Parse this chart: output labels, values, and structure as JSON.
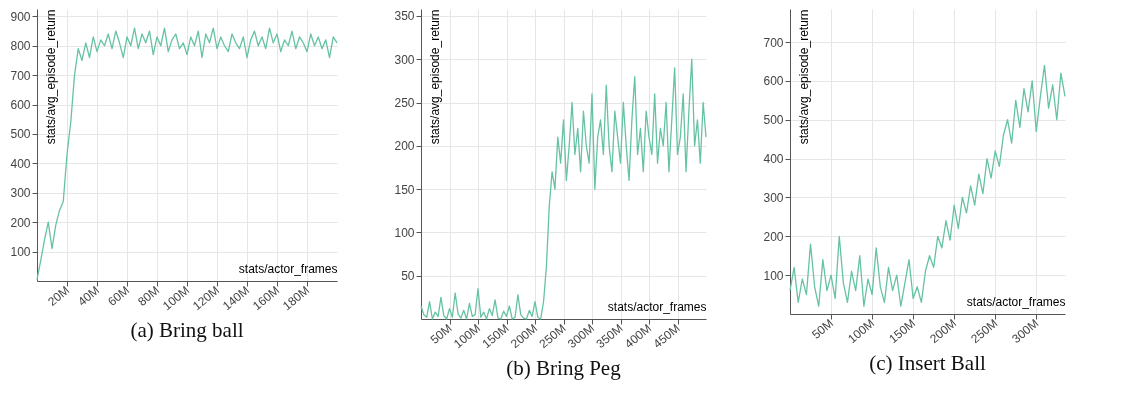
{
  "chart_data": [
    {
      "type": "line",
      "title": "(a) Bring ball",
      "xlabel": "stats/actor_frames",
      "ylabel": "stats/avg_episode_return",
      "grid": true,
      "xlim": [
        0,
        200
      ],
      "ylim": [
        0,
        925
      ],
      "xticks": [
        {
          "value": 20,
          "label": "20M"
        },
        {
          "value": 40,
          "label": "40M"
        },
        {
          "value": 60,
          "label": "60M"
        },
        {
          "value": 80,
          "label": "80M"
        },
        {
          "value": 100,
          "label": "100M"
        },
        {
          "value": 120,
          "label": "120M"
        },
        {
          "value": 140,
          "label": "140M"
        },
        {
          "value": 160,
          "label": "160M"
        },
        {
          "value": 180,
          "label": "180M"
        }
      ],
      "yticks": [
        100,
        200,
        300,
        400,
        500,
        600,
        700,
        800,
        900
      ],
      "x": [
        0,
        2.5,
        5,
        7.5,
        10,
        12.5,
        15,
        17.5,
        20,
        22.5,
        25,
        27.5,
        30,
        32.5,
        35,
        37.5,
        40,
        42.5,
        45,
        47.5,
        50,
        52.5,
        55,
        57.5,
        60,
        62.5,
        65,
        67.5,
        70,
        72.5,
        75,
        77.5,
        80,
        82.5,
        85,
        87.5,
        90,
        92.5,
        95,
        97.5,
        100,
        102.5,
        105,
        107.5,
        110,
        112.5,
        115,
        117.5,
        120,
        122.5,
        125,
        127.5,
        130,
        132.5,
        135,
        137.5,
        140,
        142.5,
        145,
        147.5,
        150,
        152.5,
        155,
        157.5,
        160,
        162.5,
        165,
        167.5,
        170,
        172.5,
        175,
        177.5,
        180,
        182.5,
        185,
        187.5,
        190,
        192.5,
        195,
        197.5,
        200
      ],
      "series": [
        {
          "color": "#66c2a5",
          "values": [
            5,
            70,
            140,
            200,
            110,
            190,
            240,
            270,
            430,
            540,
            700,
            790,
            750,
            810,
            760,
            830,
            780,
            820,
            800,
            840,
            790,
            850,
            810,
            760,
            830,
            800,
            860,
            790,
            840,
            810,
            850,
            770,
            830,
            800,
            860,
            780,
            820,
            840,
            790,
            810,
            770,
            830,
            800,
            850,
            760,
            840,
            810,
            860,
            790,
            830,
            800,
            780,
            840,
            810,
            790,
            830,
            760,
            820,
            850,
            800,
            830,
            790,
            860,
            810,
            840,
            780,
            820,
            800,
            850,
            790,
            830,
            810,
            780,
            840,
            800,
            830,
            790,
            820,
            760,
            830,
            810
          ]
        }
      ]
    },
    {
      "type": "line",
      "title": "(b) Bring Peg",
      "xlabel": "stats/actor_frames",
      "ylabel": "stats/avg_episode_return",
      "grid": true,
      "xlim": [
        0,
        500
      ],
      "ylim": [
        0,
        358
      ],
      "xticks": [
        {
          "value": 50,
          "label": "50M"
        },
        {
          "value": 100,
          "label": "100M"
        },
        {
          "value": 150,
          "label": "150M"
        },
        {
          "value": 200,
          "label": "200M"
        },
        {
          "value": 250,
          "label": "250M"
        },
        {
          "value": 300,
          "label": "300M"
        },
        {
          "value": 350,
          "label": "350M"
        },
        {
          "value": 400,
          "label": "400M"
        },
        {
          "value": 450,
          "label": "450M"
        }
      ],
      "yticks": [
        50,
        100,
        150,
        200,
        250,
        300,
        350
      ],
      "x": [
        0,
        5,
        10,
        15,
        20,
        25,
        30,
        35,
        40,
        45,
        50,
        55,
        60,
        65,
        70,
        75,
        80,
        85,
        90,
        95,
        100,
        105,
        110,
        115,
        120,
        125,
        130,
        135,
        140,
        145,
        150,
        155,
        160,
        165,
        170,
        175,
        180,
        185,
        190,
        195,
        200,
        205,
        210,
        215,
        220,
        225,
        230,
        235,
        240,
        245,
        250,
        255,
        260,
        265,
        270,
        275,
        280,
        285,
        290,
        295,
        300,
        305,
        310,
        315,
        320,
        325,
        330,
        335,
        340,
        345,
        350,
        355,
        360,
        365,
        370,
        375,
        380,
        385,
        390,
        395,
        400,
        405,
        410,
        415,
        420,
        425,
        430,
        435,
        440,
        445,
        450,
        455,
        460,
        465,
        470,
        475,
        480,
        485,
        490,
        495,
        500
      ],
      "series": [
        {
          "color": "#66c2a5",
          "values": [
            15,
            5,
            2,
            20,
            0,
            8,
            3,
            25,
            4,
            0,
            12,
            2,
            30,
            6,
            1,
            10,
            0,
            18,
            3,
            5,
            35,
            2,
            8,
            0,
            12,
            4,
            22,
            1,
            0,
            9,
            3,
            15,
            0,
            2,
            28,
            5,
            1,
            0,
            10,
            3,
            20,
            2,
            0,
            20,
            60,
            130,
            170,
            150,
            210,
            180,
            230,
            160,
            200,
            250,
            190,
            220,
            170,
            240,
            200,
            180,
            260,
            150,
            210,
            230,
            190,
            270,
            200,
            170,
            240,
            210,
            180,
            250,
            200,
            160,
            230,
            280,
            190,
            220,
            170,
            240,
            210,
            190,
            260,
            180,
            220,
            200,
            250,
            170,
            230,
            290,
            190,
            210,
            260,
            170,
            240,
            300,
            200,
            230,
            180,
            250,
            210
          ]
        }
      ]
    },
    {
      "type": "line",
      "title": "(c) Insert Ball",
      "xlabel": "stats/actor_frames",
      "ylabel": "stats/avg_episode_return",
      "grid": true,
      "xlim": [
        0,
        335
      ],
      "ylim": [
        0,
        785
      ],
      "xticks": [
        {
          "value": 50,
          "label": "50M"
        },
        {
          "value": 100,
          "label": "100M"
        },
        {
          "value": 150,
          "label": "150M"
        },
        {
          "value": 200,
          "label": "200M"
        },
        {
          "value": 250,
          "label": "250M"
        },
        {
          "value": 300,
          "label": "300M"
        }
      ],
      "yticks": [
        100,
        200,
        300,
        400,
        500,
        600,
        700
      ],
      "x": [
        0,
        5,
        10,
        15,
        20,
        25,
        30,
        35,
        40,
        45,
        50,
        55,
        60,
        65,
        70,
        75,
        80,
        85,
        90,
        95,
        100,
        105,
        110,
        115,
        120,
        125,
        130,
        135,
        140,
        145,
        150,
        155,
        160,
        165,
        170,
        175,
        180,
        185,
        190,
        195,
        200,
        205,
        210,
        215,
        220,
        225,
        230,
        235,
        240,
        245,
        250,
        255,
        260,
        265,
        270,
        275,
        280,
        285,
        290,
        295,
        300,
        305,
        310,
        315,
        320,
        325,
        330,
        335
      ],
      "series": [
        {
          "color": "#66c2a5",
          "values": [
            60,
            120,
            30,
            90,
            50,
            180,
            70,
            20,
            140,
            60,
            100,
            40,
            200,
            80,
            30,
            110,
            60,
            150,
            20,
            90,
            50,
            170,
            70,
            30,
            120,
            60,
            100,
            20,
            80,
            140,
            40,
            70,
            30,
            110,
            150,
            120,
            200,
            170,
            240,
            190,
            280,
            220,
            300,
            260,
            330,
            280,
            360,
            310,
            400,
            350,
            420,
            380,
            460,
            500,
            440,
            550,
            480,
            580,
            520,
            600,
            470,
            560,
            640,
            530,
            590,
            500,
            620,
            560
          ]
        }
      ]
    }
  ]
}
